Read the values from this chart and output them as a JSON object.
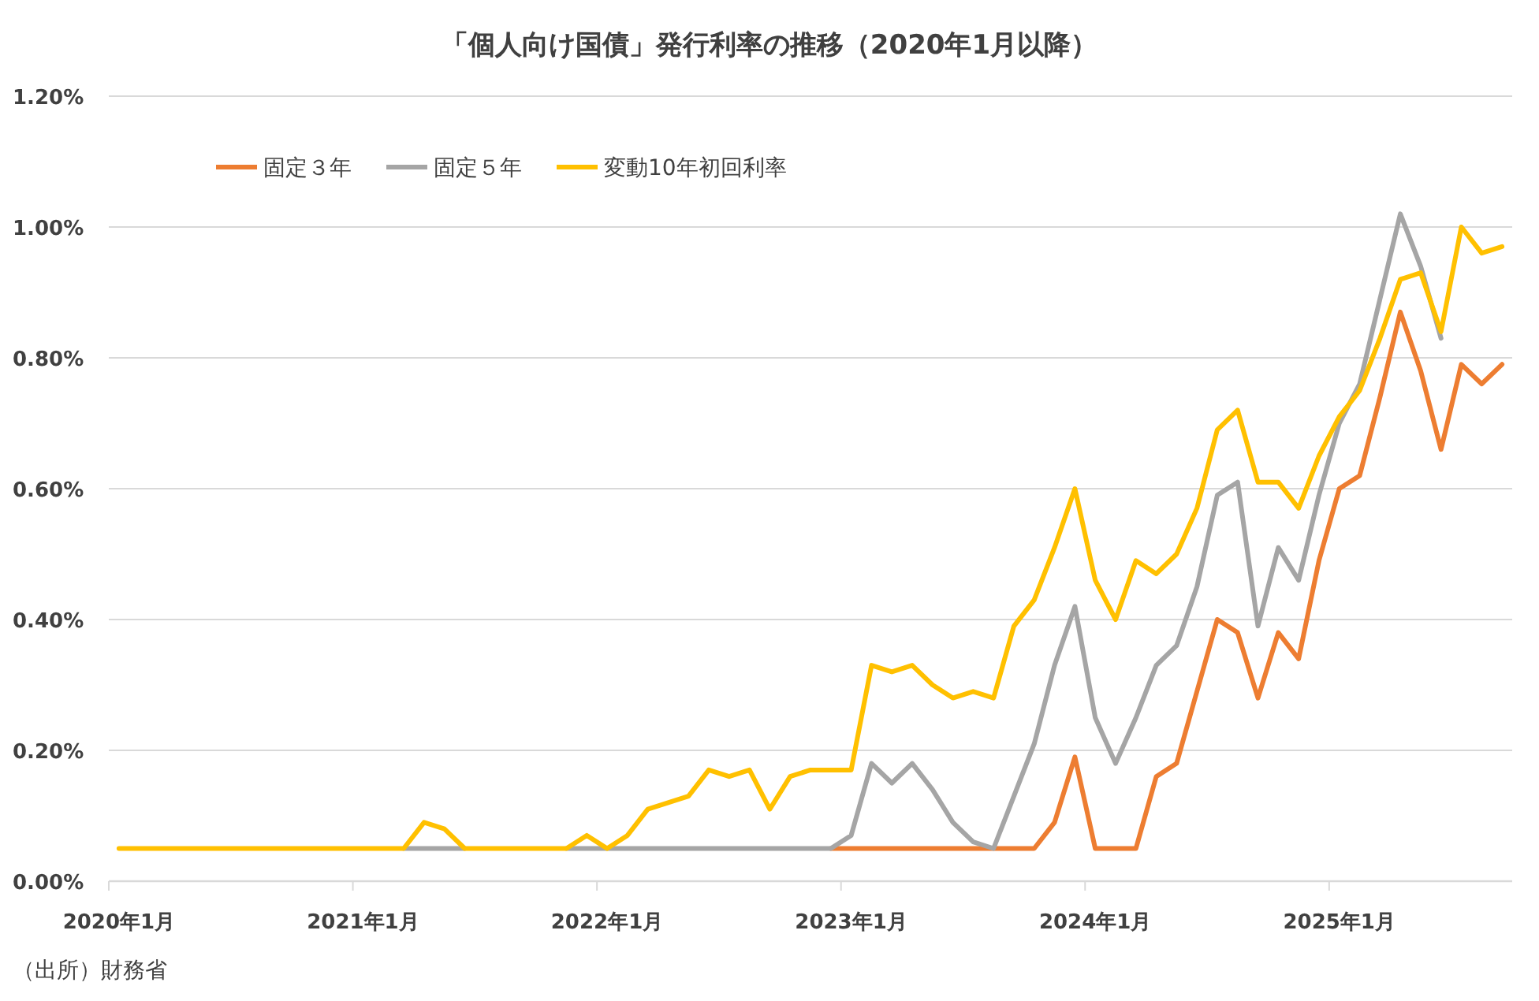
{
  "chart_data": {
    "type": "line",
    "title": "「個人向け国債」発行利率の推移（2020年1月以降）",
    "categories": [
      "2020年1月",
      null,
      null,
      null,
      null,
      null,
      null,
      null,
      null,
      null,
      null,
      null,
      "2021年1月",
      null,
      null,
      null,
      null,
      null,
      null,
      null,
      null,
      null,
      null,
      null,
      "2022年1月",
      null,
      null,
      null,
      null,
      null,
      null,
      null,
      null,
      null,
      null,
      null,
      "2023年1月",
      null,
      null,
      null,
      null,
      null,
      null,
      null,
      null,
      null,
      null,
      null,
      "2024年1月",
      null,
      null,
      null,
      null,
      null,
      null,
      null,
      null,
      null,
      null,
      null,
      "2025年1月",
      null,
      null,
      null,
      null,
      null,
      null,
      null,
      null
    ],
    "series": [
      {
        "name": "固定３年",
        "color": "#ed7d31",
        "values": [
          null,
          null,
          null,
          null,
          null,
          null,
          null,
          null,
          null,
          null,
          null,
          null,
          null,
          null,
          null,
          null,
          null,
          null,
          null,
          null,
          null,
          null,
          null,
          null,
          null,
          null,
          null,
          null,
          null,
          null,
          null,
          null,
          null,
          null,
          null,
          0.05,
          0.05,
          0.05,
          0.05,
          0.05,
          0.05,
          0.05,
          0.05,
          0.05,
          0.05,
          0.05,
          0.09,
          0.19,
          0.05,
          0.05,
          0.05,
          0.16,
          0.18,
          0.29,
          0.4,
          0.38,
          0.28,
          0.38,
          0.34,
          0.49,
          0.6,
          0.62,
          0.74,
          0.87,
          0.78,
          0.66,
          0.79,
          0.76,
          0.79
        ]
      },
      {
        "name": "固定５年",
        "color": "#a5a5a5",
        "values": [
          null,
          null,
          null,
          null,
          null,
          null,
          null,
          null,
          null,
          null,
          null,
          null,
          null,
          null,
          0.05,
          0.05,
          0.05,
          0.05,
          null,
          null,
          null,
          null,
          0.05,
          0.05,
          0.05,
          0.05,
          0.05,
          0.05,
          0.05,
          0.05,
          0.05,
          0.05,
          0.05,
          0.05,
          0.05,
          0.05,
          0.07,
          0.18,
          0.15,
          0.18,
          0.14,
          0.09,
          0.06,
          0.05,
          0.13,
          0.21,
          0.33,
          0.42,
          0.25,
          0.18,
          0.25,
          0.33,
          0.36,
          0.45,
          0.59,
          0.61,
          0.39,
          0.51,
          0.46,
          0.59,
          0.7,
          0.76,
          0.89,
          1.02,
          0.94,
          0.83,
          null,
          null,
          null
        ]
      },
      {
        "name": "変動10年初回利率",
        "color": "#ffc000",
        "values": [
          0.05,
          0.05,
          0.05,
          0.05,
          0.05,
          0.05,
          0.05,
          0.05,
          0.05,
          0.05,
          0.05,
          0.05,
          0.05,
          0.05,
          0.05,
          0.09,
          0.08,
          0.05,
          0.05,
          0.05,
          0.05,
          0.05,
          0.05,
          0.07,
          0.05,
          0.07,
          0.11,
          0.12,
          0.13,
          0.17,
          0.16,
          0.17,
          0.11,
          0.16,
          0.17,
          0.17,
          0.17,
          0.33,
          0.32,
          0.33,
          0.3,
          0.28,
          0.29,
          0.28,
          0.39,
          0.43,
          0.51,
          0.6,
          0.46,
          0.4,
          0.49,
          0.47,
          0.5,
          0.57,
          0.69,
          0.72,
          0.61,
          0.61,
          0.57,
          0.65,
          0.71,
          0.75,
          0.83,
          0.92,
          0.93,
          0.84,
          1.0,
          0.96,
          0.97
        ]
      }
    ],
    "ylim": [
      0,
      1.2
    ],
    "yticks": [
      {
        "value": 0,
        "label": "0.00%"
      },
      {
        "value": 0.2,
        "label": "0.20%"
      },
      {
        "value": 0.4,
        "label": "0.40%"
      },
      {
        "value": 0.6,
        "label": "0.60%"
      },
      {
        "value": 0.8,
        "label": "0.80%"
      },
      {
        "value": 1.0,
        "label": "1.00%"
      },
      {
        "value": 1.2,
        "label": "1.20%"
      }
    ],
    "grid": "y",
    "legend": "top left",
    "annotations": [
      "（出所）財務省"
    ]
  }
}
